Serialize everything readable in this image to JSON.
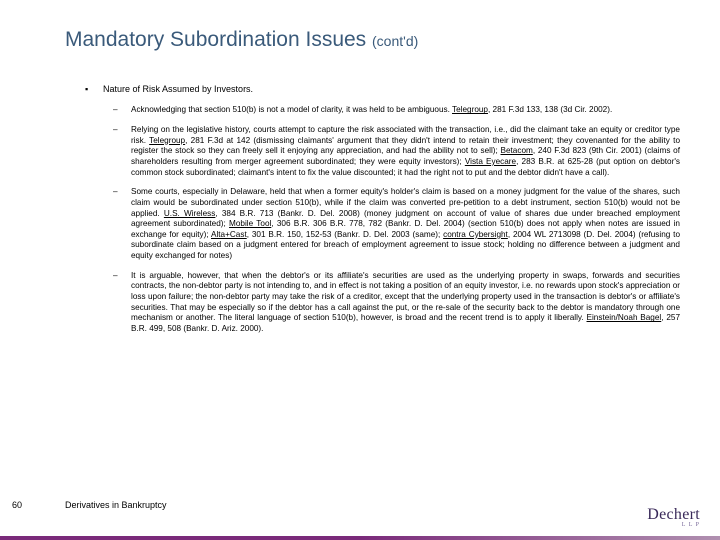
{
  "title_main": "Mandatory Subordination Issues ",
  "title_cont": "(cont'd)",
  "bullet_main": "Nature of Risk Assumed by Investors.",
  "sub1_a": "Acknowledging that section 510(b) is not a model of clarity, it was held to be ambiguous. ",
  "sub1_case": "Telegroup",
  "sub1_b": ", 281 F.3d 133, 138 (3d Cir. 2002).",
  "sub2_a": "Relying on the legislative history, courts attempt to capture the risk associated with the transaction, i.e., did the claimant take an equity or creditor type risk. ",
  "sub2_c1": "Telegroup",
  "sub2_b": ", 281 F.3d at 142 (dismissing claimants' argument that they didn't intend to retain their investment; they covenanted for the ability to register the stock so they can freely sell it enjoying any appreciation, and had the ability not to sell); ",
  "sub2_c2": "Betacom",
  "sub2_c": ", 240 F.3d 823 (9th Cir. 2001) (claims of shareholders resulting from merger agreement subordinated; they were equity investors); ",
  "sub2_c3": "Vista Eyecare",
  "sub2_d": ", 283 B.R. at 625-28 (put option on debtor's common stock subordinated; claimant's intent to fix the value discounted; it had the right not to put and the debtor didn't have a call).",
  "sub3_a": "Some courts, especially in Delaware, held that when a former equity's holder's claim is based on a money judgment for the value of the shares, such claim would be subordinated under section 510(b), while if the claim was converted pre-petition to a debt instrument, section 510(b) would not be applied. ",
  "sub3_c1": "U.S. Wireless",
  "sub3_b": ", 384 B.R. 713 (Bankr. D. Del. 2008) (money judgment on account of value of shares due under breached employment agreement subordinated); ",
  "sub3_c2": "Mobile Tool",
  "sub3_c": ", 306 B.R. 306 B.R. 778, 782 (Bankr. D. Del. 2004) (section 510(b) does not apply when notes are issued in exchange for equity); ",
  "sub3_c3": "Alta+Cast",
  "sub3_d": ", 301 B.R. 150, 152-53 (Bankr. D. Del. 2003 (same); ",
  "sub3_c4": "contra Cybersight",
  "sub3_e": ", 2004 WL 2713098 (D. Del. 2004) (refusing to subordinate claim based on a judgment entered for breach of employment agreement to issue stock; holding no difference between a judgment and equity exchanged for notes)",
  "sub4_a": "It is arguable, however, that when the debtor's or its affiliate's securities are used as the underlying property in swaps, forwards and securities contracts, the non-debtor party is not intending to, and in effect is not taking a position of an equity investor, i.e. no rewards upon stock's appreciation or loss upon failure; the non-debtor party may take the risk of a creditor, except that the underlying property used in the transaction is debtor's or affiliate's securities. That may be especially so if the debtor has a call against the put, or the re-sale of the security back to the debtor is mandatory through one mechanism or another. The literal language of section 510(b), however, is broad and the recent trend is to apply it liberally. ",
  "sub4_c1": "Einstein/Noah Bagel",
  "sub4_b": ", 257 B.R. 499, 508 (Bankr. D. Ariz. 2000).",
  "page_number": "60",
  "footer": "Derivatives in Bankruptcy",
  "logo_text": "Dechert",
  "logo_sub": "L L P"
}
